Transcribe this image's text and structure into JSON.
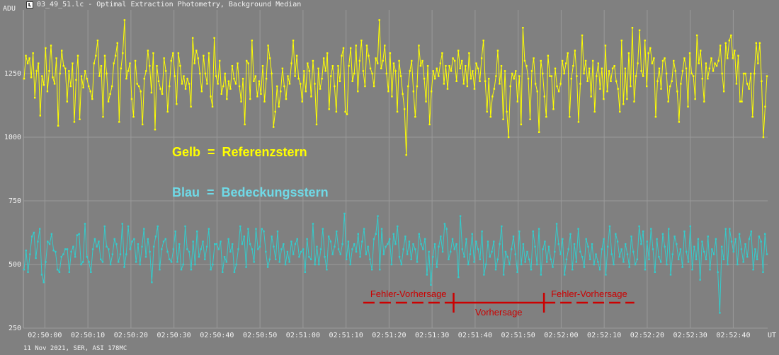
{
  "window": {
    "title": "03_49_51.lc - Optimal Extraction Photometry, Background Median",
    "icon": "light-curve-app-icon"
  },
  "footer": {
    "text": "11 Nov 2021, SER, ASI 178MC"
  },
  "annotations": {
    "legend_yellow": "Gelb  =  Referenzstern",
    "legend_blue": "Blau  =  Bedeckungsstern",
    "error_left": "Fehler-Vorhersage",
    "error_right": "Fehler-Vorhersage",
    "prediction": "Vorhersage",
    "annotation_color": "#cc0000",
    "prediction_start": "02:51:35",
    "prediction_end": "02:51:56"
  },
  "chart_data": {
    "type": "line",
    "ylabel": "ADU",
    "xlabel": "UT",
    "ylim": [
      250,
      1500
    ],
    "yticks": [
      "250",
      "500",
      "750",
      "1000",
      "1250"
    ],
    "xticks": [
      "02:50:00",
      "02:50:10",
      "02:50:20",
      "02:50:30",
      "02:50:40",
      "02:50:50",
      "02:51:00",
      "02:51:10",
      "02:51:20",
      "02:51:30",
      "02:51:40",
      "02:51:50",
      "02:52:00",
      "02:52:10",
      "02:52:20",
      "02:52:30",
      "02:52:40"
    ],
    "x_start": "02:49:55",
    "x_end": "02:52:48",
    "grid": true,
    "series": [
      {
        "color": "#ffff00",
        "values": [
          1230,
          1320,
          1290,
          1310,
          1235,
          1330,
          1155,
          1260,
          1290,
          1085,
          1240,
          1205,
          1350,
          1180,
          1260,
          1360,
          1235,
          1210,
          1310,
          1045,
          1250,
          1340,
          1280,
          1270,
          1140,
          1260,
          1200,
          1290,
          1060,
          1225,
          1320,
          1070,
          1240,
          1195,
          1260,
          1230,
          1200,
          1180,
          1150,
          1290,
          1320,
          1380,
          1240,
          1280,
          1080,
          1320,
          1250,
          1140,
          1170,
          1200,
          1290,
          1320,
          1370,
          1060,
          1270,
          1330,
          1460,
          1230,
          1260,
          1290,
          1150,
          1080,
          1300,
          1210,
          1200,
          1180,
          1050,
          1230,
          1260,
          1340,
          1280,
          1175,
          1330,
          1030,
          1280,
          1220,
          1190,
          1170,
          1310,
          1260,
          1100,
          1200,
          1300,
          1330,
          1240,
          1130,
          1330,
          1280,
          1210,
          1240,
          1190,
          1230,
          1210,
          1120,
          1390,
          1290,
          1340,
          1310,
          1250,
          1180,
          1320,
          1250,
          1210,
          1330,
          1160,
          1120,
          1390,
          1240,
          1210,
          1300,
          1170,
          1200,
          1250,
          1150,
          1220,
          1190,
          1280,
          1230,
          1210,
          1290,
          1200,
          1140,
          1230,
          1050,
          1300,
          1290,
          1150,
          1380,
          1220,
          1240,
          1160,
          1220,
          1170,
          1280,
          1140,
          1230,
          1360,
          1310,
          1250,
          1040,
          1100,
          1200,
          1120,
          1180,
          1270,
          1200,
          1150,
          1240,
          1210,
          1290,
          1380,
          1240,
          1320,
          1230,
          1210,
          1140,
          1260,
          1180,
          1290,
          1260,
          1160,
          1300,
          1210,
          1050,
          1270,
          1190,
          1230,
          1310,
          1260,
          1330,
          1110,
          1240,
          1280,
          1200,
          1100,
          1280,
          1220,
          1320,
          1350,
          1100,
          1090,
          1280,
          1350,
          1220,
          1250,
          1360,
          1180,
          1300,
          1380,
          1260,
          1200,
          1360,
          1320,
          1270,
          1250,
          1200,
          1310,
          1290,
          1460,
          1270,
          1300,
          1360,
          1250,
          1180,
          1330,
          1160,
          1290,
          1260,
          1100,
          1300,
          1240,
          1170,
          1110,
          930,
          1200,
          1260,
          1300,
          1180,
          1080,
          1200,
          1360,
          1280,
          1300,
          1230,
          1140,
          1280,
          1050,
          1180,
          1260,
          1230,
          1270,
          1240,
          1290,
          1330,
          1210,
          1280,
          1190,
          1280,
          1260,
          1310,
          1300,
          1220,
          1340,
          1270,
          1300,
          1210,
          1280,
          1200,
          1330,
          1230,
          1260,
          1190,
          1290,
          1270,
          1220,
          1310,
          1380,
          1220,
          1100,
          1230,
          1080,
          1160,
          1190,
          1240,
          1340,
          1210,
          1280,
          1070,
          1260,
          1100,
          1000,
          1200,
          1250,
          1230,
          1260,
          1140,
          1240,
          1050,
          1430,
          1300,
          1280,
          1230,
          1070,
          1260,
          1310,
          1210,
          1180,
          1020,
          1300,
          1250,
          1160,
          1080,
          1320,
          1240,
          1240,
          1110,
          1270,
          1200,
          1180,
          1210,
          1300,
          1250,
          1290,
          1330,
          1080,
          1230,
          1280,
          1340,
          1240,
          1060,
          1210,
          1400,
          1250,
          1300,
          1220,
          1270,
          1160,
          1300,
          1100,
          1240,
          1290,
          1190,
          1270,
          1150,
          1360,
          1180,
          1260,
          1220,
          1270,
          1280,
          1220,
          1190,
          1100,
          1380,
          1130,
          1270,
          1150,
          1330,
          1200,
          1430,
          1140,
          1240,
          1290,
          1420,
          1260,
          1240,
          1380,
          1200,
          1330,
          1350,
          1290,
          1310,
          1080,
          1220,
          1270,
          1190,
          1300,
          1310,
          1250,
          1140,
          1200,
          1220,
          1300,
          1260,
          1180,
          1060,
          1210,
          1260,
          1310,
          1270,
          1120,
          1330,
          1250,
          1240,
          1150,
          1400,
          1290,
          1340,
          1230,
          1140,
          1290,
          1230,
          1270,
          1310,
          1260,
          1290,
          1280,
          1300,
          1360,
          1250,
          1180,
          1370,
          1310,
          1380,
          1400,
          1310,
          1340,
          1210,
          1320,
          1140,
          1140,
          1250,
          1250,
          1210,
          1190,
          1250,
          1080,
          1250,
          1370,
          1290,
          1370,
          1220,
          1000,
          1120,
          1240
        ]
      },
      {
        "color": "#33cccc",
        "values": [
          480,
          555,
          470,
          540,
          610,
          625,
          525,
          590,
          640,
          460,
          430,
          510,
          590,
          580,
          620,
          555,
          550,
          480,
          470,
          530,
          540,
          560,
          560,
          470,
          550,
          570,
          530,
          615,
          620,
          500,
          510,
          660,
          530,
          510,
          470,
          560,
          600,
          570,
          590,
          520,
          510,
          650,
          570,
          560,
          500,
          540,
          600,
          580,
          510,
          540,
          660,
          490,
          540,
          650,
          560,
          590,
          600,
          510,
          580,
          500,
          570,
          640,
          530,
          600,
          550,
          430,
          570,
          610,
          650,
          480,
          560,
          590,
          600,
          550,
          520,
          510,
          560,
          630,
          510,
          580,
          480,
          500,
          650,
          560,
          550,
          480,
          590,
          500,
          630,
          530,
          560,
          590,
          520,
          570,
          640,
          480,
          500,
          580,
          580,
          560,
          590,
          470,
          530,
          510,
          600,
          550,
          580,
          470,
          500,
          560,
          650,
          580,
          610,
          490,
          640,
          580,
          560,
          510,
          640,
          560,
          570,
          640,
          630,
          550,
          490,
          520,
          610,
          570,
          520,
          630,
          510,
          560,
          580,
          500,
          550,
          510,
          590,
          540,
          580,
          600,
          530,
          550,
          560,
          470,
          600,
          530,
          520,
          660,
          500,
          570,
          500,
          560,
          640,
          530,
          480,
          610,
          590,
          540,
          570,
          630,
          560,
          540,
          580,
          700,
          520,
          590,
          500,
          560,
          580,
          550,
          620,
          530,
          590,
          640,
          540,
          570,
          520,
          480,
          600,
          620,
          690,
          480,
          640,
          540,
          570,
          580,
          600,
          500,
          620,
          580,
          650,
          530,
          500,
          560,
          610,
          540,
          590,
          520,
          580,
          560,
          510,
          620,
          580,
          560,
          600,
          460,
          550,
          420,
          530,
          580,
          490,
          570,
          610,
          550,
          660,
          640,
          520,
          550,
          600,
          560,
          580,
          450,
          690,
          560,
          530,
          600,
          500,
          540,
          620,
          510,
          590,
          560,
          520,
          630,
          460,
          500,
          590,
          530,
          550,
          590,
          480,
          520,
          580,
          650,
          460,
          550,
          530,
          500,
          560,
          610,
          540,
          470,
          630,
          500,
          580,
          510,
          550,
          520,
          480,
          630,
          570,
          500,
          640,
          460,
          560,
          590,
          510,
          570,
          520,
          490,
          550,
          660,
          580,
          540,
          600,
          460,
          520,
          560,
          620,
          480,
          580,
          510,
          640,
          550,
          530,
          490,
          600,
          570,
          520,
          580,
          500,
          540,
          510,
          480,
          560,
          600,
          460,
          570,
          650,
          540,
          500,
          620,
          590,
          530,
          560,
          510,
          580,
          540,
          490,
          610,
          550,
          500,
          520,
          650,
          580,
          630,
          480,
          590,
          520,
          640,
          560,
          470,
          600,
          530,
          510,
          620,
          570,
          500,
          640,
          460,
          540,
          610,
          580,
          520,
          560,
          490,
          630,
          550,
          510,
          650,
          480,
          570,
          520,
          600,
          440,
          590,
          550,
          520,
          610,
          480,
          560,
          540,
          600,
          470,
          310,
          570,
          520,
          640,
          500,
          640,
          590,
          550,
          600,
          500,
          620,
          560,
          510,
          580,
          530,
          600,
          630,
          480,
          560,
          520,
          610,
          590,
          470,
          620,
          540
        ]
      }
    ]
  }
}
